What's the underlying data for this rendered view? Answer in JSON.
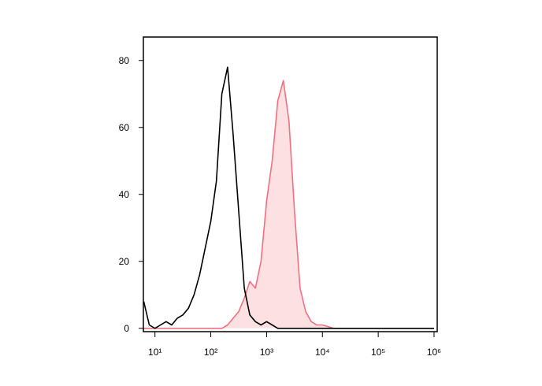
{
  "chart_data": {
    "type": "histogram-overlay",
    "xscale": "log",
    "xlim": [
      6.2,
      1140000
    ],
    "ylim": [
      -1,
      87
    ],
    "xticks": [
      {
        "value": 10,
        "label": "10¹"
      },
      {
        "value": 100,
        "label": "10²"
      },
      {
        "value": 1000,
        "label": "10³"
      },
      {
        "value": 10000,
        "label": "10⁴"
      },
      {
        "value": 100000,
        "label": "10⁵"
      },
      {
        "value": 1000000,
        "label": "10⁶"
      }
    ],
    "yticks": [
      0,
      20,
      40,
      60,
      80
    ],
    "x": [
      6.3,
      7.9,
      10,
      12.6,
      15.8,
      20,
      25.1,
      31.6,
      39.8,
      50.1,
      63.1,
      79.4,
      100,
      126,
      158,
      200,
      251,
      316,
      398,
      501,
      631,
      794,
      1000,
      1259,
      1585,
      1995,
      2512,
      3162,
      3981,
      5012,
      6310,
      7943,
      10000,
      12589,
      15849,
      19953,
      25119,
      31623,
      39811,
      50119,
      63096,
      79433,
      100000,
      125893,
      158489,
      199526,
      251189,
      316228,
      398107,
      501187,
      630957,
      794328,
      1000000
    ],
    "series": [
      {
        "color": "#000000",
        "values": [
          8,
          1,
          0,
          1,
          2,
          1,
          3,
          4,
          6,
          10,
          16,
          24,
          32,
          44,
          70,
          78,
          58,
          35,
          12,
          4,
          2,
          1,
          2,
          1,
          0,
          0,
          0,
          0,
          0,
          0,
          0,
          0,
          0,
          0,
          0,
          0,
          0,
          0,
          0,
          0,
          0,
          0,
          0,
          0,
          0,
          0,
          0,
          0,
          0,
          0,
          0,
          0,
          0
        ]
      },
      {
        "color": "#f07080",
        "fill": "#fde0e2",
        "values": [
          0,
          0,
          0,
          0,
          0,
          0,
          0,
          0,
          0,
          0,
          0,
          0,
          0,
          0,
          0,
          1,
          3,
          5,
          9,
          14,
          12,
          20,
          38,
          50,
          68,
          74,
          62,
          35,
          12,
          5,
          2,
          1,
          1,
          0.5,
          0,
          0,
          0,
          0,
          0,
          0,
          0,
          0,
          0,
          0,
          0,
          0,
          0,
          0,
          0,
          0,
          0,
          0,
          0
        ]
      }
    ]
  }
}
